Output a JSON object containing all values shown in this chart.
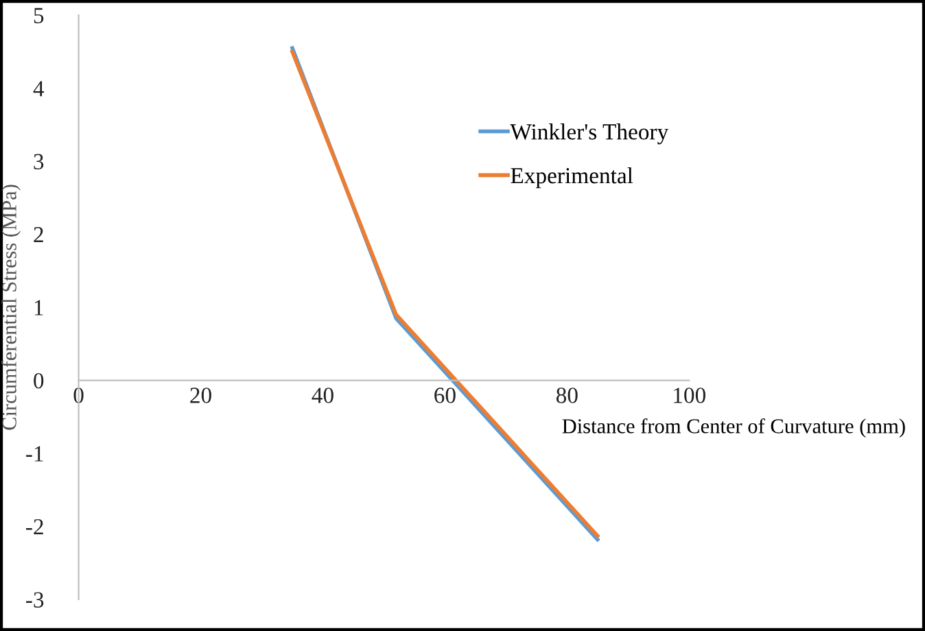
{
  "chart_data": {
    "type": "line",
    "xlabel": "Distance from Center of Curvature (mm)",
    "ylabel": "Circumferential Stress (MPa)",
    "x": [
      35,
      52,
      85
    ],
    "series": [
      {
        "name": "Winkler's Theory",
        "color": "#5b9bd5",
        "values": [
          4.55,
          0.85,
          -2.18
        ]
      },
      {
        "name": "Experimental",
        "color": "#ed7d31",
        "values": [
          4.5,
          0.9,
          -2.13
        ]
      }
    ],
    "xlim": [
      0,
      100
    ],
    "xticks": [
      0,
      20,
      40,
      60,
      80,
      100
    ],
    "ylim": [
      -3,
      5
    ],
    "yticks": [
      -3,
      -2,
      -1,
      0,
      1,
      2,
      3,
      4,
      5
    ],
    "grid": false,
    "legend": "top right",
    "marker": "none",
    "line_style": "solid"
  }
}
